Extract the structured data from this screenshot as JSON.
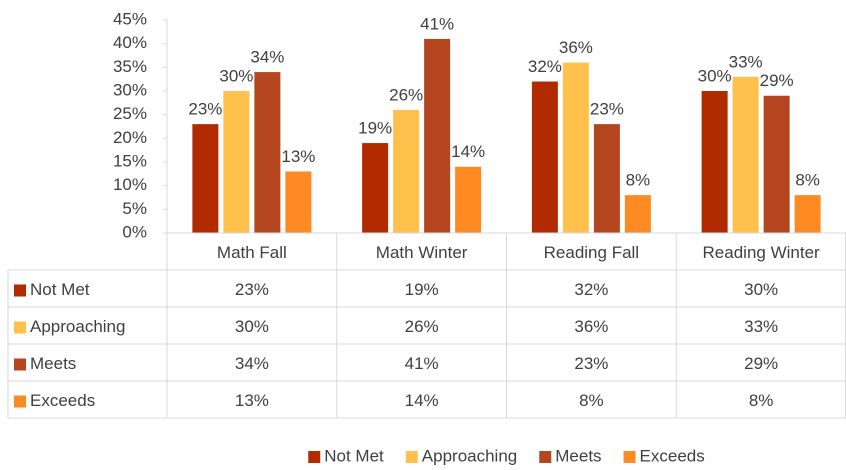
{
  "chart_data": {
    "type": "bar",
    "categories": [
      "Math Fall",
      "Math Winter",
      "Reading Fall",
      "Reading Winter"
    ],
    "series": [
      {
        "name": "Not Met",
        "color": "#b22a00",
        "values": [
          23,
          19,
          32,
          30
        ],
        "value_labels": [
          "23%",
          "19%",
          "32%",
          "30%"
        ]
      },
      {
        "name": "Approaching",
        "color": "#ffc04c",
        "values": [
          30,
          26,
          36,
          33
        ],
        "value_labels": [
          "30%",
          "26%",
          "36%",
          "33%"
        ]
      },
      {
        "name": "Meets",
        "color": "#b5451f",
        "values": [
          34,
          41,
          23,
          29
        ],
        "value_labels": [
          "34%",
          "41%",
          "23%",
          "29%"
        ]
      },
      {
        "name": "Exceeds",
        "color": "#fd8a22",
        "values": [
          13,
          14,
          8,
          8
        ],
        "value_labels": [
          "13%",
          "14%",
          "8%",
          "8%"
        ]
      }
    ],
    "ylim": [
      0,
      45
    ],
    "yticks": [
      {
        "value": 0,
        "label": "0%"
      },
      {
        "value": 5,
        "label": "5%"
      },
      {
        "value": 10,
        "label": "10%"
      },
      {
        "value": 15,
        "label": "15%"
      },
      {
        "value": 20,
        "label": "20%"
      },
      {
        "value": 25,
        "label": "25%"
      },
      {
        "value": 30,
        "label": "30%"
      },
      {
        "value": 35,
        "label": "35%"
      },
      {
        "value": 40,
        "label": "40%"
      },
      {
        "value": 45,
        "label": "45%"
      }
    ],
    "legend": "bottom",
    "data_table": true
  }
}
